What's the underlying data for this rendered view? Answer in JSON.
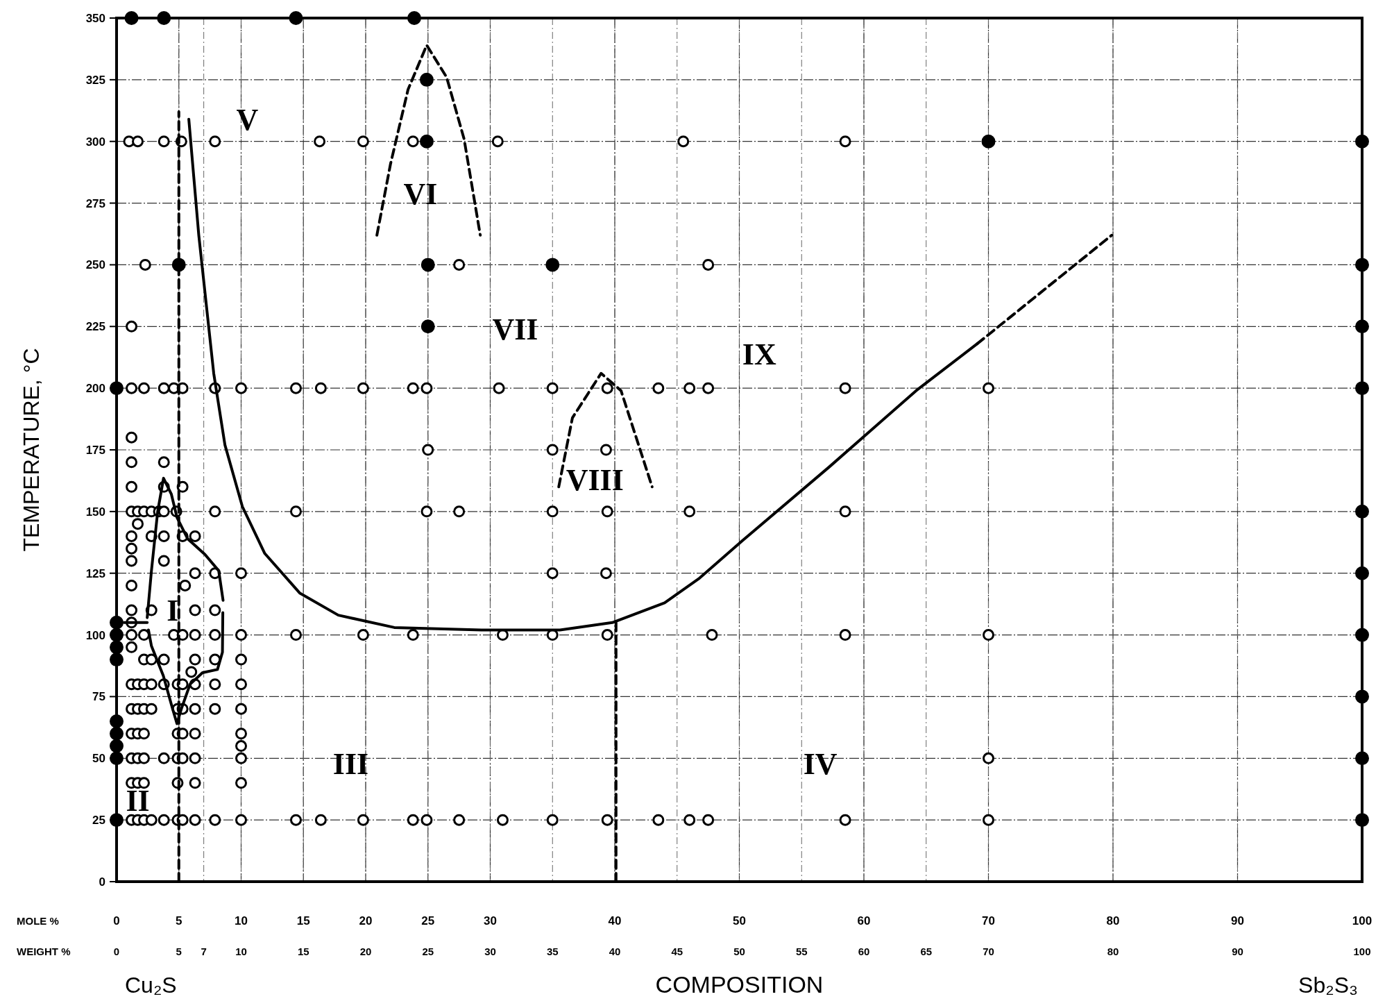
{
  "chart_data": {
    "type": "scatter",
    "ylabel": "TEMPERATURE, °C",
    "xlabel": "COMPOSITION",
    "x2label": "WEIGHT %",
    "xlim": [
      0,
      100
    ],
    "ylim": [
      0,
      350
    ],
    "xticks": [
      0,
      5,
      10,
      15,
      20,
      25,
      30,
      40,
      50,
      60,
      70,
      80,
      90,
      100
    ],
    "yticks": [
      0,
      25,
      50,
      75,
      100,
      125,
      150,
      175,
      200,
      225,
      250,
      275,
      300,
      325,
      350
    ],
    "x2lim": [
      0,
      100
    ],
    "x2ticks": [
      0,
      5,
      7,
      10,
      15,
      20,
      25,
      30,
      35,
      40,
      45,
      50,
      55,
      60,
      65,
      70,
      80,
      90,
      100
    ],
    "grid": true,
    "annotations": [
      "MOLE %",
      "Cu₂S",
      "Sb₂S₃",
      "I",
      "II",
      "III",
      "IV",
      "V",
      "VI",
      "VII",
      "VIII",
      "IX"
    ],
    "series": [
      {
        "marker": "circle",
        "color": "#ffffff",
        "x": [
          1.0,
          1.7,
          3.8,
          5.2,
          7.9,
          16.3,
          19.8,
          23.8,
          30.6,
          45.5,
          58.5,
          2.3,
          27.5,
          47.5,
          1.2,
          1.2,
          2.2,
          3.8,
          4.6,
          5.3,
          7.9,
          10,
          14.4,
          16.4,
          19.8,
          23.8,
          24.9,
          30.7,
          35,
          39.4,
          43.5,
          46,
          47.5,
          58.5,
          70,
          1.2,
          25,
          35,
          39.3,
          1.2,
          3.8,
          1.2,
          3.8,
          5.3,
          1.2,
          1.7,
          2.2,
          2.8,
          3.4,
          3.8,
          4.8,
          7.9,
          14.4,
          24.9,
          27.5,
          35,
          39.4,
          46,
          58.5,
          1.7,
          1.2,
          2.8,
          3.8,
          5.3,
          6.3,
          1.2,
          1.2,
          3.8,
          6.3,
          7.9,
          10,
          35,
          39.3,
          1.2,
          5.5,
          1.2,
          2.8,
          6.3,
          7.9,
          1.2,
          1.2,
          2.2,
          4.6,
          5.3,
          6.3,
          7.9,
          10,
          14.4,
          19.8,
          23.8,
          31,
          35,
          39.4,
          47.8,
          58.5,
          70,
          1.2,
          2.2,
          2.8,
          3.8,
          6.3,
          7.9,
          10,
          6,
          1.2,
          1.7,
          2.2,
          2.8,
          3.8,
          4.9,
          5.3,
          6.3,
          7.9,
          10,
          1.2,
          1.7,
          2.2,
          2.8,
          4.9,
          5.3,
          6.3,
          7.9,
          10,
          1.2,
          1.7,
          2.2,
          4.9,
          5.3,
          6.3,
          10,
          10,
          1.2,
          1.7,
          2.2,
          3.8,
          4.9,
          5.3,
          6.3,
          10,
          70,
          1.2,
          1.7,
          2.2,
          4.9,
          6.3,
          10,
          1.2,
          1.7,
          2.2,
          2.8,
          3.8,
          4.9,
          5.3,
          6.3,
          7.9,
          10,
          14.4,
          16.4,
          19.8,
          23.8,
          24.9,
          27.5,
          31,
          35,
          39.4,
          43.5,
          46,
          47.5,
          58.5,
          70
        ],
        "values": [
          300,
          300,
          300,
          300,
          300,
          300,
          300,
          300,
          300,
          300,
          300,
          250,
          250,
          250,
          225,
          200,
          200,
          200,
          200,
          200,
          200,
          200,
          200,
          200,
          200,
          200,
          200,
          200,
          200,
          200,
          200,
          200,
          200,
          200,
          200,
          180,
          175,
          175,
          175,
          170,
          170,
          160,
          160,
          160,
          150,
          150,
          150,
          150,
          150,
          150,
          150,
          150,
          150,
          150,
          150,
          150,
          150,
          150,
          150,
          145,
          140,
          140,
          140,
          140,
          140,
          135,
          130,
          130,
          125,
          125,
          125,
          125,
          125,
          120,
          120,
          110,
          110,
          110,
          110,
          105,
          100,
          100,
          100,
          100,
          100,
          100,
          100,
          100,
          100,
          100,
          100,
          100,
          100,
          100,
          100,
          100,
          95,
          90,
          90,
          90,
          90,
          90,
          90,
          85,
          80,
          80,
          80,
          80,
          80,
          80,
          80,
          80,
          80,
          80,
          70,
          70,
          70,
          70,
          70,
          70,
          70,
          70,
          70,
          60,
          60,
          60,
          60,
          60,
          60,
          60,
          55,
          50,
          50,
          50,
          50,
          50,
          50,
          50,
          50,
          50,
          40,
          40,
          40,
          40,
          40,
          40,
          25,
          25,
          25,
          25,
          25,
          25,
          25,
          25,
          25,
          25,
          25,
          25,
          25,
          25,
          25,
          25,
          25,
          25,
          25,
          25,
          25,
          25,
          25,
          25
        ]
      },
      {
        "marker": "circle",
        "color": "#000000",
        "x": [
          1.2,
          3.8,
          14.4,
          23.9,
          24.9,
          24.9,
          70,
          100,
          5,
          25,
          35,
          100,
          25,
          100,
          0,
          100,
          100,
          100,
          0,
          0,
          100,
          0,
          0,
          100,
          0,
          0,
          0,
          0,
          100,
          0,
          100
        ],
        "values": [
          350,
          350,
          350,
          350,
          325,
          300,
          300,
          300,
          250,
          250,
          250,
          250,
          225,
          225,
          200,
          200,
          150,
          125,
          105,
          100,
          100,
          95,
          90,
          75,
          65,
          60,
          55,
          50,
          50,
          25,
          25
        ]
      },
      {
        "type": "line",
        "color": "#000000",
        "line_style": "solid",
        "x": [
          5.8,
          6.6,
          7.8,
          8.7,
          10.1,
          11.9,
          14.7,
          17.8,
          22.3,
          29.3,
          35.6,
          39.8,
          44,
          46.8,
          50.2,
          57.2,
          64.2,
          69.1
        ],
        "values": [
          309,
          262,
          206,
          177,
          152,
          133,
          117,
          108,
          103,
          102,
          102,
          105,
          113,
          123,
          138,
          168,
          199,
          218
        ]
      },
      {
        "type": "line",
        "color": "#000000",
        "line_style": "dashed",
        "x": [
          69.1,
          79.9
        ],
        "values": [
          218,
          262
        ]
      },
      {
        "type": "line",
        "color": "#000000",
        "line_style": "dashed",
        "x": [
          20.9,
          22,
          23.4,
          24.9,
          26.5,
          27.9,
          29.2
        ],
        "values": [
          262,
          291,
          321,
          339,
          326,
          301,
          262
        ]
      },
      {
        "type": "line",
        "color": "#000000",
        "line_style": "dashed",
        "x": [
          35.5,
          36.6,
          38.9,
          40.5,
          43
        ],
        "values": [
          160,
          188,
          206,
          199,
          160
        ]
      },
      {
        "type": "line",
        "color": "#000000",
        "line_style": "dashed",
        "x": [
          5,
          5
        ],
        "values": [
          0,
          312
        ]
      },
      {
        "type": "line",
        "color": "#000000",
        "line_style": "dashed",
        "x": [
          40.1,
          40.1
        ],
        "values": [
          0,
          105
        ]
      },
      {
        "type": "line",
        "color": "#000000",
        "line_style": "solid",
        "x": [
          2.46,
          2.8,
          3.3,
          3.77,
          4.4,
          4.85,
          5.7,
          7.1,
          8.2,
          8.55
        ],
        "values": [
          107,
          126,
          150,
          163.5,
          157,
          147.6,
          139,
          132.6,
          126,
          114
        ]
      },
      {
        "type": "line",
        "color": "#000000",
        "line_style": "solid",
        "x": [
          2.56,
          2.8,
          3.75,
          4.5,
          4.85,
          5.2,
          5.9,
          6.9,
          8.1,
          8.5,
          8.53
        ],
        "values": [
          102,
          95.5,
          83.5,
          70,
          64,
          70,
          80,
          84.7,
          86,
          93,
          109
        ]
      },
      {
        "type": "line",
        "color": "#000000",
        "line_style": "solid",
        "x": [
          0.6,
          2.46
        ],
        "values": [
          105,
          105
        ]
      }
    ]
  }
}
